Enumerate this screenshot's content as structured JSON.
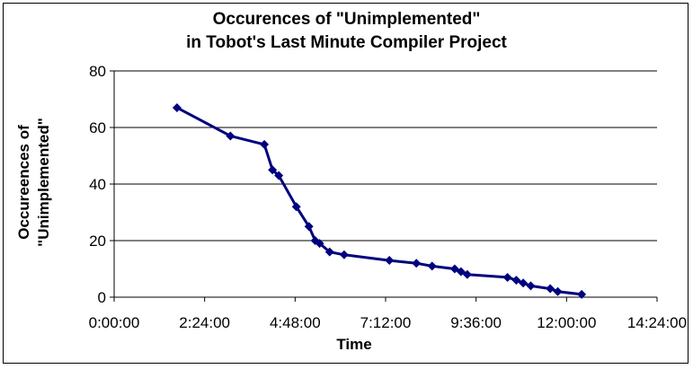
{
  "chart_data": {
    "type": "line",
    "title_line1": "Occurences of \"Unimplemented\"",
    "title_line2": "in Tobot's Last Minute Compiler Project",
    "xlabel": "Time",
    "ylabel_line1": "Occureences of",
    "ylabel_line2": "\"Unimplemented\"",
    "xlim_seconds": [
      0,
      51840
    ],
    "ylim": [
      0,
      80
    ],
    "x_ticks": [
      "0:00:00",
      "2:24:00",
      "4:48:00",
      "7:12:00",
      "9:36:00",
      "12:00:00",
      "14:24:00"
    ],
    "y_ticks": [
      "0",
      "20",
      "40",
      "60",
      "80"
    ],
    "grid": "horizontal",
    "series": [
      {
        "color": "#00007f",
        "marker": "diamond",
        "points": [
          {
            "x": "1:40:00",
            "y": 67
          },
          {
            "x": "3:05:00",
            "y": 57
          },
          {
            "x": "3:59:00",
            "y": 54
          },
          {
            "x": "4:12:00",
            "y": 45
          },
          {
            "x": "4:22:00",
            "y": 43
          },
          {
            "x": "4:50:00",
            "y": 32
          },
          {
            "x": "5:10:00",
            "y": 25
          },
          {
            "x": "5:20:00",
            "y": 20
          },
          {
            "x": "5:27:00",
            "y": 19
          },
          {
            "x": "5:43:00",
            "y": 16
          },
          {
            "x": "6:06:00",
            "y": 15
          },
          {
            "x": "7:18:00",
            "y": 13
          },
          {
            "x": "8:01:00",
            "y": 12
          },
          {
            "x": "8:26:00",
            "y": 11
          },
          {
            "x": "9:02:00",
            "y": 10
          },
          {
            "x": "9:12:00",
            "y": 9
          },
          {
            "x": "9:22:00",
            "y": 8
          },
          {
            "x": "10:26:00",
            "y": 7
          },
          {
            "x": "10:40:00",
            "y": 6
          },
          {
            "x": "10:51:00",
            "y": 5
          },
          {
            "x": "11:03:00",
            "y": 4
          },
          {
            "x": "11:34:00",
            "y": 3
          },
          {
            "x": "11:46:00",
            "y": 2
          },
          {
            "x": "12:24:00",
            "y": 1
          }
        ]
      }
    ]
  }
}
